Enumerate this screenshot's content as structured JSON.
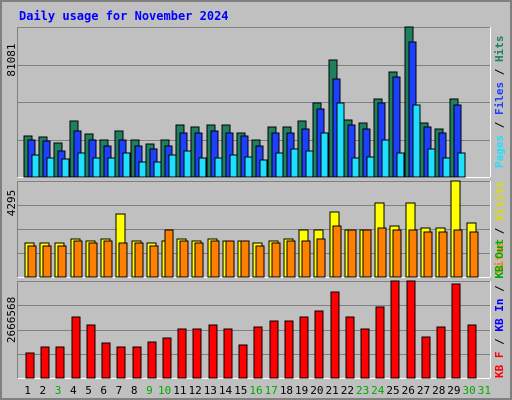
{
  "title": "Daily usage for November 2024",
  "chart_data": [
    {
      "type": "bar",
      "categories": [
        "1",
        "2",
        "3",
        "4",
        "5",
        "6",
        "7",
        "8",
        "9",
        "10",
        "11",
        "12",
        "13",
        "14",
        "15",
        "16",
        "17",
        "18",
        "19",
        "20",
        "21",
        "22",
        "23",
        "24",
        "25",
        "26",
        "27",
        "28",
        "29",
        "30",
        "31"
      ],
      "weekend_days": [
        "3",
        "9",
        "10",
        "16",
        "17",
        "23",
        "24",
        "30",
        "31"
      ],
      "ylabel_parts": [
        "Pages",
        "Files",
        "Hits"
      ],
      "max_label": "81081",
      "ylim": [
        0,
        81081
      ],
      "grid": true,
      "series": [
        {
          "name": "Hits",
          "color": "#1f7f5f",
          "values": [
            22000,
            21500,
            18300,
            30000,
            23000,
            20000,
            25000,
            20000,
            18000,
            20000,
            28000,
            27000,
            28000,
            28000,
            24000,
            20000,
            27000,
            27000,
            30000,
            40000,
            63000,
            31000,
            29000,
            42000,
            57000,
            81081,
            29000,
            26000,
            42000,
            0,
            0
          ]
        },
        {
          "name": "Files",
          "color": "#1f3fff",
          "values": [
            20000,
            19500,
            14300,
            25000,
            20000,
            17000,
            20000,
            17000,
            15000,
            17000,
            24000,
            24000,
            25000,
            24000,
            22000,
            17000,
            24000,
            24000,
            26000,
            37000,
            53000,
            28000,
            26000,
            40000,
            54000,
            73000,
            27000,
            24000,
            39000,
            0,
            0
          ]
        },
        {
          "name": "Pages",
          "color": "#1fdfff",
          "values": [
            12000,
            10500,
            9500,
            13000,
            10000,
            10000,
            13000,
            8000,
            8000,
            12000,
            14000,
            10000,
            10000,
            12000,
            11000,
            9000,
            13000,
            15000,
            14000,
            24000,
            40000,
            10000,
            11000,
            20000,
            13000,
            39000,
            15000,
            10000,
            13000,
            0,
            0
          ]
        }
      ]
    },
    {
      "type": "bar",
      "categories": [
        "1",
        "2",
        "3",
        "4",
        "5",
        "6",
        "7",
        "8",
        "9",
        "10",
        "11",
        "12",
        "13",
        "14",
        "15",
        "16",
        "17",
        "18",
        "19",
        "20",
        "21",
        "22",
        "23",
        "24",
        "25",
        "26",
        "27",
        "28",
        "29",
        "30",
        "31"
      ],
      "ylabel_parts": [
        "Sites",
        "Visits"
      ],
      "max_label": "4295",
      "ylim": [
        0,
        4295
      ],
      "grid": true,
      "series": [
        {
          "name": "Visits",
          "color": "#ffff00",
          "values": [
            1500,
            1500,
            1500,
            1700,
            1600,
            1700,
            2800,
            1600,
            1500,
            1600,
            1700,
            1600,
            1700,
            1600,
            1600,
            1500,
            1600,
            1700,
            2100,
            2100,
            2900,
            2100,
            2100,
            3300,
            2300,
            3300,
            2200,
            2200,
            4295,
            2400,
            0
          ]
        },
        {
          "name": "Sites",
          "color": "#ff7f00",
          "values": [
            1400,
            1400,
            1400,
            1600,
            1500,
            1600,
            1500,
            1500,
            1400,
            2100,
            1600,
            1500,
            1600,
            1600,
            1600,
            1400,
            1500,
            1600,
            1600,
            1700,
            2300,
            2100,
            2100,
            2200,
            2100,
            2100,
            2000,
            2000,
            2100,
            2000,
            0
          ]
        }
      ]
    },
    {
      "type": "bar",
      "categories": [
        "1",
        "2",
        "3",
        "4",
        "5",
        "6",
        "7",
        "8",
        "9",
        "10",
        "11",
        "12",
        "13",
        "14",
        "15",
        "16",
        "17",
        "18",
        "19",
        "20",
        "21",
        "22",
        "23",
        "24",
        "25",
        "26",
        "27",
        "28",
        "29",
        "30",
        "31"
      ],
      "ylabel_parts": [
        "KB F",
        "KB In",
        "KB Out"
      ],
      "max_label": "2666568",
      "ylim": [
        0,
        2666568
      ],
      "grid": true,
      "series": [
        {
          "name": "KB F",
          "color": "#ff0000",
          "values": [
            700000,
            860000,
            860000,
            1670000,
            1460000,
            960000,
            860000,
            860000,
            1000000,
            1110000,
            1350000,
            1360000,
            1460000,
            1360000,
            920000,
            1410000,
            1570000,
            1570000,
            1680000,
            1830000,
            2370000,
            1680000,
            1340000,
            1960000,
            2666568,
            2666568,
            1130000,
            1400000,
            2580000,
            1460000,
            0
          ]
        }
      ]
    }
  ],
  "colors": {
    "background": "#c0c0c0",
    "plot_background": "#c0c0c0",
    "grid": "#808080",
    "frame_dark": "#808080",
    "weekday_label": "#000000",
    "weekend_label": "#00aa00",
    "title": "#0000ff"
  }
}
